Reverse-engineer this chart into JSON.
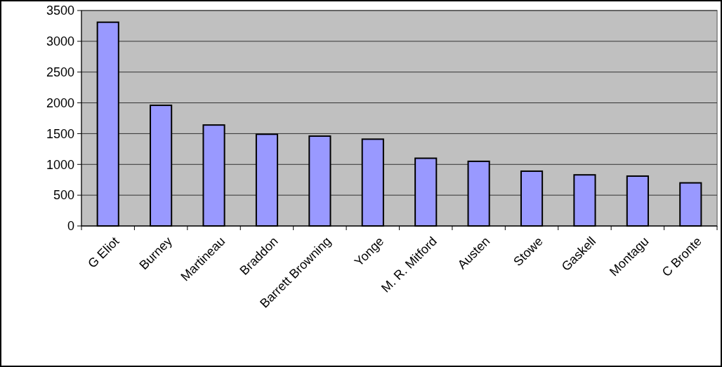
{
  "chart_data": {
    "type": "bar",
    "categories": [
      "G Eliot",
      "Burney",
      "Martineau",
      "Braddon",
      "Barrett Browning",
      "Yonge",
      "M. R. Mitford",
      "Austen",
      "Stowe",
      "Gaskell",
      "Montagu",
      "C Bronte"
    ],
    "values": [
      3310,
      1960,
      1640,
      1490,
      1460,
      1410,
      1100,
      1050,
      890,
      830,
      810,
      700
    ],
    "color": "#9999ff",
    "ylim": [
      0,
      3500
    ],
    "yticks": [
      0,
      500,
      1000,
      1500,
      2000,
      2500,
      3000,
      3500
    ],
    "grid": "y"
  }
}
